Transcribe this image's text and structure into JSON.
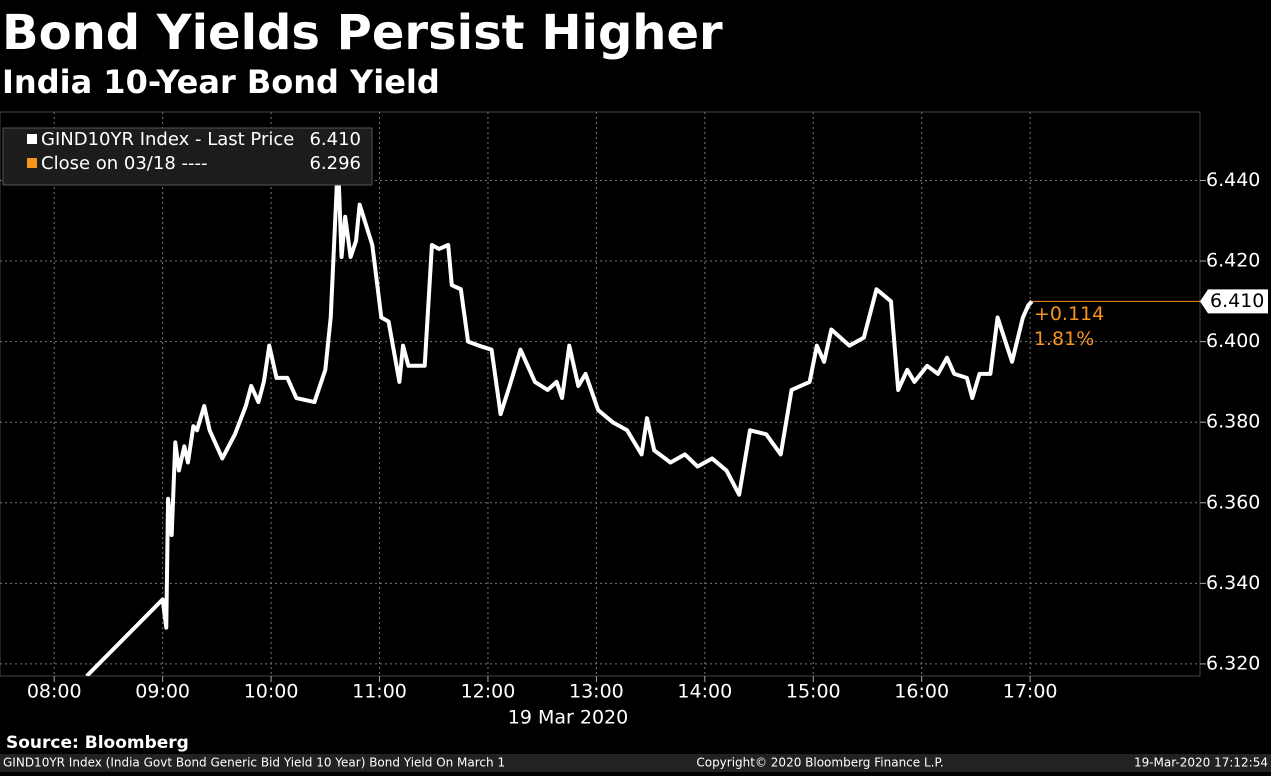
{
  "chart_data": {
    "type": "line",
    "title": "Bond Yields Persist Higher",
    "subtitle": "India 10-Year Bond Yield",
    "series": [
      {
        "name": "GIND10YR Index - Last Price",
        "color": "#ffffff",
        "x": [
          "08:18",
          "09:00",
          "09:02",
          "09:03",
          "09:05",
          "09:07",
          "09:09",
          "09:12",
          "09:14",
          "09:17",
          "09:19",
          "09:23",
          "09:26",
          "09:33",
          "09:40",
          "09:46",
          "09:49",
          "09:53",
          "09:56",
          "09:59",
          "10:03",
          "10:09",
          "10:14",
          "10:24",
          "10:30",
          "10:33",
          "10:37",
          "10:39",
          "10:41",
          "10:44",
          "10:47",
          "10:49",
          "10:56",
          "11:01",
          "11:05",
          "11:11",
          "11:13",
          "11:16",
          "11:25",
          "11:29",
          "11:33",
          "11:38",
          "11:40",
          "11:45",
          "11:49",
          "11:55",
          "12:02",
          "12:07",
          "12:12",
          "12:18",
          "12:26",
          "12:33",
          "12:38",
          "12:41",
          "12:45",
          "12:50",
          "12:54",
          "13:01",
          "13:09",
          "13:17",
          "13:25",
          "13:28",
          "13:32",
          "13:41",
          "13:49",
          "13:56",
          "14:04",
          "14:12",
          "14:19",
          "14:25",
          "14:34",
          "14:42",
          "14:48",
          "14:58",
          "15:02",
          "15:06",
          "15:10",
          "15:20",
          "15:28",
          "15:35",
          "15:43",
          "15:47",
          "15:52",
          "15:56",
          "16:03",
          "16:09",
          "16:14",
          "16:18",
          "16:25",
          "16:28",
          "16:32",
          "16:38",
          "16:42",
          "16:50",
          "16:56",
          "16:59",
          "17:01"
        ],
        "values": [
          6.317,
          6.336,
          6.329,
          6.361,
          6.352,
          6.375,
          6.368,
          6.374,
          6.37,
          6.379,
          6.378,
          6.384,
          6.378,
          6.371,
          6.377,
          6.384,
          6.389,
          6.385,
          6.39,
          6.399,
          6.391,
          6.391,
          6.386,
          6.385,
          6.393,
          6.406,
          6.445,
          6.421,
          6.431,
          6.421,
          6.425,
          6.434,
          6.424,
          6.406,
          6.405,
          6.39,
          6.399,
          6.394,
          6.394,
          6.424,
          6.423,
          6.424,
          6.414,
          6.413,
          6.4,
          6.399,
          6.398,
          6.382,
          6.389,
          6.398,
          6.39,
          6.388,
          6.39,
          6.386,
          6.399,
          6.389,
          6.392,
          6.383,
          6.38,
          6.378,
          6.372,
          6.381,
          6.373,
          6.37,
          6.372,
          6.369,
          6.371,
          6.368,
          6.362,
          6.378,
          6.377,
          6.372,
          6.388,
          6.39,
          6.399,
          6.395,
          6.403,
          6.399,
          6.401,
          6.413,
          6.41,
          6.388,
          6.393,
          6.39,
          6.394,
          6.392,
          6.396,
          6.392,
          6.391,
          6.386,
          6.392,
          6.392,
          6.406,
          6.395,
          6.406,
          6.409,
          6.41
        ],
        "last": {
          "value": 6.41,
          "label": "6.410"
        }
      }
    ],
    "close": {
      "name": "Close on 03/18 ----",
      "color": "#f7941d",
      "value": 6.296,
      "label": "6.296"
    },
    "change": {
      "value": 0.114,
      "label": "+0.114"
    },
    "change_pct": {
      "value": 1.81,
      "label": "1.81%"
    },
    "xlim": [
      "07:30",
      "18:34"
    ],
    "xticks": [
      "08:00",
      "09:00",
      "10:00",
      "11:00",
      "12:00",
      "13:00",
      "14:00",
      "15:00",
      "16:00",
      "17:00"
    ],
    "xlabel": "19 Mar 2020",
    "ylim": [
      6.317,
      6.457
    ],
    "yticks": [
      {
        "value": 6.32,
        "label": "6.320"
      },
      {
        "value": 6.34,
        "label": "6.340"
      },
      {
        "value": 6.36,
        "label": "6.360"
      },
      {
        "value": 6.38,
        "label": "6.380"
      },
      {
        "value": 6.4,
        "label": "6.400"
      },
      {
        "value": 6.42,
        "label": "6.420"
      },
      {
        "value": 6.44,
        "label": "6.440"
      }
    ],
    "grid": true,
    "legend": "upper left",
    "source": "Source: Bloomberg",
    "footer": {
      "left": "GIND10YR Index (India Govt Bond Generic Bid Yield 10 Year) Bond Yield On March 1",
      "center": "Copyright© 2020 Bloomberg Finance L.P.",
      "right": "19-Mar-2020 17:12:54"
    }
  }
}
